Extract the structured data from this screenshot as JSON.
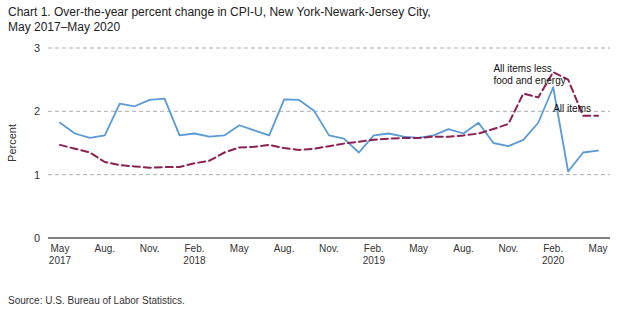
{
  "chart_data": {
    "type": "line",
    "title": "Chart 1. Over-the-year percent change in CPI-U, New York-Newark-Jersey City,",
    "subtitle": "May 2017–May 2020",
    "y_label": "Percent",
    "source": "Source: U.S. Bureau of Labor Statistics.",
    "categories": [
      "May\n2017",
      null,
      null,
      "Aug.",
      null,
      null,
      "Nov.",
      null,
      null,
      "Feb.\n2018",
      null,
      null,
      "May",
      null,
      null,
      "Aug.",
      null,
      null,
      "Nov.",
      null,
      null,
      "Feb.\n2019",
      null,
      null,
      "May",
      null,
      null,
      "Aug.",
      null,
      null,
      "Nov.",
      null,
      null,
      "Feb.\n2020",
      null,
      null,
      "May"
    ],
    "series": [
      {
        "color": "#5B9BD5",
        "line_style": "solid",
        "values": [
          1.82,
          1.65,
          1.58,
          1.62,
          2.12,
          2.08,
          2.18,
          2.2,
          1.62,
          1.65,
          1.6,
          1.62,
          1.78,
          1.7,
          1.62,
          2.19,
          2.18,
          2.01,
          1.62,
          1.57,
          1.35,
          1.62,
          1.65,
          1.6,
          1.58,
          1.62,
          1.72,
          1.65,
          1.82,
          1.5,
          1.45,
          1.55,
          1.82,
          2.38,
          1.05,
          1.35,
          1.38
        ]
      },
      {
        "color": "#8B2252",
        "line_style": "dashed",
        "values": [
          1.47,
          1.41,
          1.35,
          1.2,
          1.15,
          1.13,
          1.11,
          1.12,
          1.12,
          1.18,
          1.22,
          1.35,
          1.43,
          1.44,
          1.47,
          1.42,
          1.39,
          1.41,
          1.45,
          1.49,
          1.52,
          1.55,
          1.57,
          1.58,
          1.58,
          1.6,
          1.6,
          1.62,
          1.65,
          1.72,
          1.8,
          2.28,
          2.22,
          2.62,
          2.5,
          1.93,
          1.93
        ]
      }
    ],
    "annotations": [
      {
        "text": "All items less\nfood and energy",
        "x": 29,
        "y": 2.38
      },
      {
        "text": "All items",
        "x": 33,
        "y": 1.95
      }
    ],
    "ylim": [
      0,
      3
    ],
    "yticks": [
      0,
      1,
      2,
      3
    ],
    "grid": true
  }
}
